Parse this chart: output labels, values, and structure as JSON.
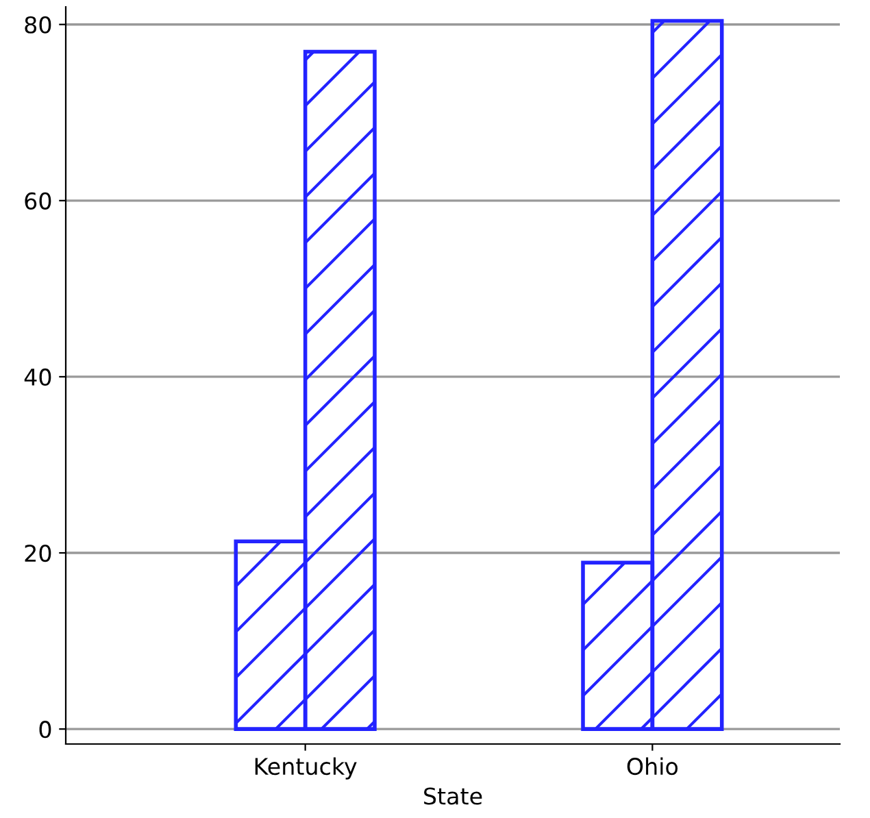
{
  "chart_data": {
    "type": "bar",
    "xlabel": "State",
    "categories": [
      "Kentucky",
      "Ohio"
    ],
    "series": [
      {
        "color": "#2323ff",
        "values": [
          21.3,
          18.9
        ]
      },
      {
        "color": "#2323ff",
        "values": [
          76.9,
          80.4
        ]
      }
    ],
    "ylim": [
      -1.7,
      82
    ],
    "yticks": [
      0,
      20,
      40,
      60,
      80
    ],
    "grid": "y"
  }
}
